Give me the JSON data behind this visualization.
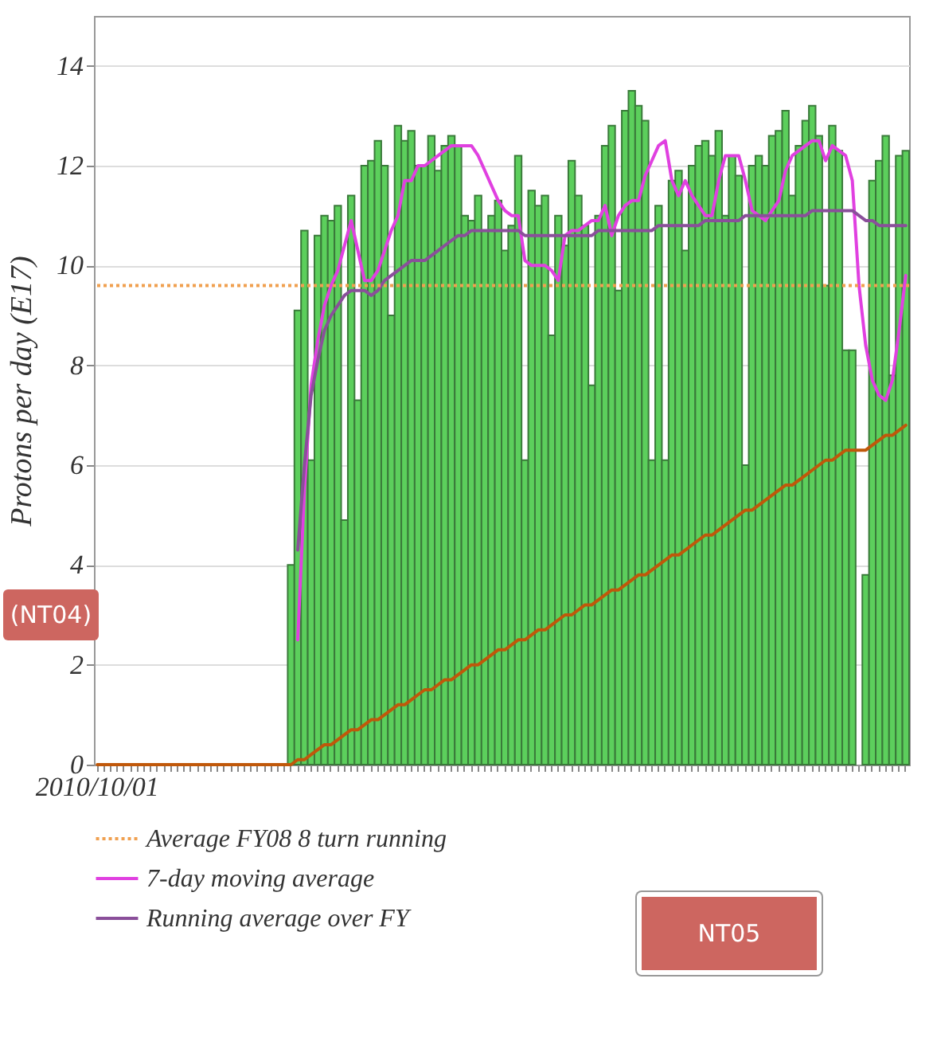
{
  "chart_data": {
    "type": "bar",
    "categories": [
      "2010/10/01",
      null,
      null,
      null,
      null,
      null,
      null,
      null,
      null,
      null,
      null,
      null,
      null,
      null,
      null,
      null,
      null,
      null,
      null,
      null,
      null,
      null,
      null,
      null,
      null,
      null,
      null,
      null,
      null,
      null,
      null,
      null,
      null,
      null,
      null,
      null,
      null,
      null,
      null,
      null,
      null,
      null,
      null,
      null,
      null,
      null,
      null,
      null,
      null,
      null,
      null,
      null,
      null,
      null,
      null,
      null,
      null,
      null,
      null,
      null,
      null,
      null,
      null,
      null,
      null,
      null,
      null,
      null,
      null,
      null,
      null,
      null,
      null,
      null,
      null,
      null,
      null,
      null,
      null,
      null,
      null,
      null,
      null,
      null,
      null,
      null,
      null,
      null,
      null,
      null,
      null,
      null,
      null,
      null,
      null,
      null,
      null,
      null,
      null,
      null,
      null,
      null,
      null,
      null,
      null,
      null,
      null,
      null,
      null,
      null,
      null,
      null,
      null,
      null,
      null,
      null,
      null,
      null,
      null,
      null,
      null,
      null
    ],
    "series": [
      {
        "color": "#5ccf5c",
        "values": [
          null,
          null,
          null,
          null,
          null,
          null,
          null,
          null,
          null,
          null,
          null,
          null,
          null,
          null,
          null,
          null,
          null,
          null,
          null,
          null,
          null,
          null,
          null,
          null,
          null,
          null,
          null,
          null,
          null,
          4.0,
          9.1,
          10.7,
          6.1,
          10.6,
          11.0,
          10.9,
          11.2,
          4.9,
          11.4,
          7.3,
          12.0,
          12.1,
          12.5,
          12.0,
          9.0,
          12.8,
          12.5,
          12.7,
          12.0,
          12.0,
          12.6,
          11.9,
          12.4,
          12.6,
          12.4,
          11.0,
          10.9,
          11.4,
          10.7,
          11.0,
          11.3,
          10.3,
          10.8,
          12.2,
          6.1,
          11.5,
          11.2,
          11.4,
          8.6,
          11.0,
          10.4,
          12.1,
          11.4,
          10.8,
          7.6,
          11.0,
          12.4,
          12.8,
          9.5,
          13.1,
          13.5,
          13.2,
          12.9,
          6.1,
          11.2,
          6.1,
          11.7,
          11.9,
          10.3,
          12.0,
          12.4,
          12.5,
          12.2,
          12.7,
          11.0,
          12.2,
          11.8,
          6.0,
          12.0,
          12.2,
          12.0,
          12.6,
          12.7,
          13.1,
          11.4,
          12.4,
          12.9,
          13.2,
          12.6,
          9.6,
          12.8,
          12.3,
          8.3,
          8.3,
          null,
          3.8,
          11.7,
          12.1,
          12.6,
          7.8,
          12.2,
          12.3
        ]
      },
      {
        "type": "line",
        "name": "7-day moving average",
        "color": "#e040e0",
        "values": [
          null,
          null,
          null,
          null,
          null,
          null,
          null,
          null,
          null,
          null,
          null,
          null,
          null,
          null,
          null,
          null,
          null,
          null,
          null,
          null,
          null,
          null,
          null,
          null,
          null,
          null,
          null,
          null,
          null,
          null,
          2.5,
          5.5,
          7.6,
          8.5,
          9.2,
          9.6,
          9.9,
          10.4,
          10.9,
          10.3,
          9.7,
          9.7,
          9.9,
          10.3,
          10.7,
          11.0,
          11.7,
          11.7,
          12.0,
          12.0,
          12.1,
          12.2,
          12.3,
          12.4,
          12.4,
          12.4,
          12.4,
          12.2,
          11.9,
          11.6,
          11.3,
          11.1,
          11.0,
          11.0,
          10.1,
          10.0,
          10.0,
          10.0,
          9.9,
          9.7,
          10.6,
          10.7,
          10.7,
          10.8,
          10.9,
          10.9,
          11.2,
          10.6,
          11.0,
          11.2,
          11.3,
          11.3,
          11.8,
          12.1,
          12.4,
          12.5,
          11.7,
          11.4,
          11.7,
          11.4,
          11.2,
          11.0,
          11.0,
          11.7,
          12.2,
          12.2,
          12.2,
          11.7,
          11.1,
          11.0,
          10.9,
          11.1,
          11.3,
          11.9,
          12.2,
          12.3,
          12.4,
          12.5,
          12.5,
          12.1,
          12.4,
          12.3,
          12.2,
          11.7,
          9.6,
          8.4,
          7.7,
          7.4,
          7.3,
          7.7,
          8.7,
          9.8
        ]
      },
      {
        "type": "line",
        "name": "Running average over FY",
        "color": "#8a4f9a",
        "values": [
          null,
          null,
          null,
          null,
          null,
          null,
          null,
          null,
          null,
          null,
          null,
          null,
          null,
          null,
          null,
          null,
          null,
          null,
          null,
          null,
          null,
          null,
          null,
          null,
          null,
          null,
          null,
          null,
          null,
          null,
          4.3,
          6.0,
          7.4,
          8.1,
          8.7,
          9.0,
          9.2,
          9.4,
          9.5,
          9.5,
          9.5,
          9.4,
          9.5,
          9.7,
          9.8,
          9.9,
          10.0,
          10.1,
          10.1,
          10.1,
          10.2,
          10.3,
          10.4,
          10.5,
          10.6,
          10.6,
          10.7,
          10.7,
          10.7,
          10.7,
          10.7,
          10.7,
          10.7,
          10.7,
          10.6,
          10.6,
          10.6,
          10.6,
          10.6,
          10.6,
          10.6,
          10.6,
          10.6,
          10.6,
          10.6,
          10.7,
          10.7,
          10.7,
          10.7,
          10.7,
          10.7,
          10.7,
          10.7,
          10.7,
          10.8,
          10.8,
          10.8,
          10.8,
          10.8,
          10.8,
          10.8,
          10.9,
          10.9,
          10.9,
          10.9,
          10.9,
          10.9,
          11.0,
          11.0,
          11.0,
          11.0,
          11.0,
          11.0,
          11.0,
          11.0,
          11.0,
          11.0,
          11.1,
          11.1,
          11.1,
          11.1,
          11.1,
          11.1,
          11.1,
          11.0,
          10.9,
          10.9,
          10.8,
          10.8,
          10.8,
          10.8,
          10.8
        ]
      },
      {
        "type": "line",
        "color": "#c0580a",
        "values": [
          0,
          0,
          0,
          0,
          0,
          0,
          0,
          0,
          0,
          0,
          0,
          0,
          0,
          0,
          0,
          0,
          0,
          0,
          0,
          0,
          0,
          0,
          0,
          0,
          0,
          0,
          0,
          0,
          0,
          0,
          0.1,
          0.1,
          0.2,
          0.3,
          0.4,
          0.4,
          0.5,
          0.6,
          0.7,
          0.7,
          0.8,
          0.9,
          0.9,
          1.0,
          1.1,
          1.2,
          1.2,
          1.3,
          1.4,
          1.5,
          1.5,
          1.6,
          1.7,
          1.7,
          1.8,
          1.9,
          2.0,
          2.0,
          2.1,
          2.2,
          2.3,
          2.3,
          2.4,
          2.5,
          2.5,
          2.6,
          2.7,
          2.7,
          2.8,
          2.9,
          3.0,
          3.0,
          3.1,
          3.2,
          3.2,
          3.3,
          3.4,
          3.5,
          3.5,
          3.6,
          3.7,
          3.8,
          3.8,
          3.9,
          4.0,
          4.1,
          4.2,
          4.2,
          4.3,
          4.4,
          4.5,
          4.6,
          4.6,
          4.7,
          4.8,
          4.9,
          5.0,
          5.1,
          5.1,
          5.2,
          5.3,
          5.4,
          5.5,
          5.6,
          5.6,
          5.7,
          5.8,
          5.9,
          6.0,
          6.1,
          6.1,
          6.2,
          6.3,
          6.3,
          6.3,
          6.3,
          6.4,
          6.5,
          6.6,
          6.6,
          6.7,
          6.8
        ]
      }
    ],
    "ylabel": "Protons per day (E17)",
    "ylim": [
      0,
      15
    ],
    "yticks": [
      0,
      2,
      4,
      6,
      8,
      10,
      12,
      14
    ],
    "grid": "y",
    "legend": "bottom left",
    "ref_lines": [
      {
        "axis": "y",
        "value": 9.6,
        "label": "Average FY08 8 turn running",
        "color": "#f0a050",
        "line_style": "dotted"
      }
    ],
    "annotations": [
      "(NT04)",
      "NT05"
    ]
  }
}
